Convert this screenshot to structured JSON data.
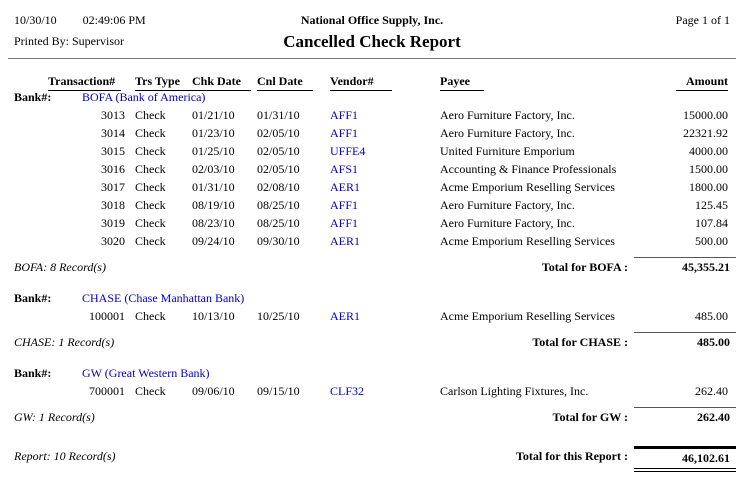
{
  "page": {
    "printed_date": "10/30/10",
    "printed_time": "02:49:06 PM",
    "printed_by": "Printed By: Supervisor",
    "company": "National Office Supply, Inc.",
    "title": "Cancelled Check Report",
    "page_indicator": "Page 1 of 1"
  },
  "labels": {
    "bank": "Bank#:"
  },
  "columns": {
    "transaction": "Transaction#",
    "trs_type": "Trs Type",
    "chk_date": "Chk Date",
    "cnl_date": "Cnl Date",
    "vendor": "Vendor#",
    "payee": "Payee",
    "amount": "Amount"
  },
  "colors": {
    "link_blue": "#0000cc",
    "text": "#000000"
  },
  "banks": [
    {
      "name": "BOFA (Bank of America)",
      "rows": [
        {
          "txn": "3013",
          "type": "Check",
          "chk": "01/21/10",
          "cnl": "01/31/10",
          "vendor": "AFF1",
          "payee": "Aero Furniture Factory, Inc.",
          "amount": "15000.00"
        },
        {
          "txn": "3014",
          "type": "Check",
          "chk": "01/23/10",
          "cnl": "02/05/10",
          "vendor": "AFF1",
          "payee": "Aero Furniture Factory, Inc.",
          "amount": "22321.92"
        },
        {
          "txn": "3015",
          "type": "Check",
          "chk": "01/25/10",
          "cnl": "02/05/10",
          "vendor": "UFFE4",
          "payee": "United Furniture Emporium",
          "amount": "4000.00"
        },
        {
          "txn": "3016",
          "type": "Check",
          "chk": "02/03/10",
          "cnl": "02/05/10",
          "vendor": "AFS1",
          "payee": "Accounting & Finance Professionals",
          "amount": "1500.00"
        },
        {
          "txn": "3017",
          "type": "Check",
          "chk": "01/31/10",
          "cnl": "02/08/10",
          "vendor": "AER1",
          "payee": "Acme Emporium Reselling Services",
          "amount": "1800.00"
        },
        {
          "txn": "3018",
          "type": "Check",
          "chk": "08/19/10",
          "cnl": "08/25/10",
          "vendor": "AFF1",
          "payee": "Aero Furniture Factory, Inc.",
          "amount": "125.45"
        },
        {
          "txn": "3019",
          "type": "Check",
          "chk": "08/23/10",
          "cnl": "08/25/10",
          "vendor": "AFF1",
          "payee": "Aero Furniture Factory, Inc.",
          "amount": "107.84"
        },
        {
          "txn": "3020",
          "type": "Check",
          "chk": "09/24/10",
          "cnl": "09/30/10",
          "vendor": "AER1",
          "payee": "Acme Emporium Reselling Services",
          "amount": "500.00"
        }
      ],
      "record_count": "BOFA: 8 Record(s)",
      "total_label": "Total for BOFA :",
      "total": "45,355.21"
    },
    {
      "name": "CHASE (Chase Manhattan Bank)",
      "rows": [
        {
          "txn": "100001",
          "type": "Check",
          "chk": "10/13/10",
          "cnl": "10/25/10",
          "vendor": "AER1",
          "payee": "Acme Emporium Reselling Services",
          "amount": "485.00"
        }
      ],
      "record_count": "CHASE: 1 Record(s)",
      "total_label": "Total for CHASE :",
      "total": "485.00"
    },
    {
      "name": "GW (Great Western Bank)",
      "rows": [
        {
          "txn": "700001",
          "type": "Check",
          "chk": "09/06/10",
          "cnl": "09/15/10",
          "vendor": "CLF32",
          "payee": "Carlson Lighting Fixtures, Inc.",
          "amount": "262.40"
        }
      ],
      "record_count": "GW: 1 Record(s)",
      "total_label": "Total for GW :",
      "total": "262.40"
    }
  ],
  "report_summary": {
    "record_count": "Report: 10 Record(s)",
    "total_label": "Total for this Report :",
    "total": "46,102.61"
  }
}
